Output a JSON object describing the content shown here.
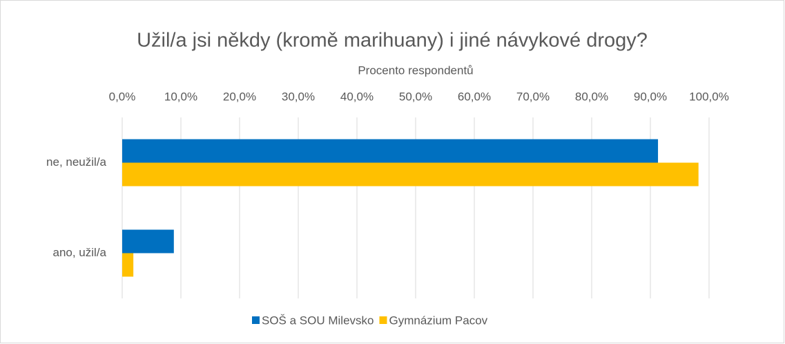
{
  "chart_data": {
    "type": "hbar",
    "title": "Užil/a jsi někdy (kromě marihuany) i jiné návykové drogy?",
    "xlabel": "Procento respondentů",
    "categories": [
      "ne, neužil/a",
      "ano, užil/a"
    ],
    "series": [
      {
        "name": "SOŠ a SOU Milevsko",
        "color": "#0070c0",
        "values": [
          91.3,
          8.8
        ]
      },
      {
        "name": "Gymnázium Pacov",
        "color": "#ffc000",
        "values": [
          98.2,
          1.9
        ]
      }
    ],
    "xlim": [
      0,
      100
    ],
    "xticks": [
      {
        "value": 0,
        "label": "0,0%"
      },
      {
        "value": 10,
        "label": "10,0%"
      },
      {
        "value": 20,
        "label": "20,0%"
      },
      {
        "value": 30,
        "label": "30,0%"
      },
      {
        "value": 40,
        "label": "40,0%"
      },
      {
        "value": 50,
        "label": "50,0%"
      },
      {
        "value": 60,
        "label": "60,0%"
      },
      {
        "value": 70,
        "label": "70,0%"
      },
      {
        "value": 80,
        "label": "80,0%"
      },
      {
        "value": 90,
        "label": "90,0%"
      },
      {
        "value": 100,
        "label": "100,0%"
      }
    ],
    "grid": true,
    "legend": "bottom"
  }
}
